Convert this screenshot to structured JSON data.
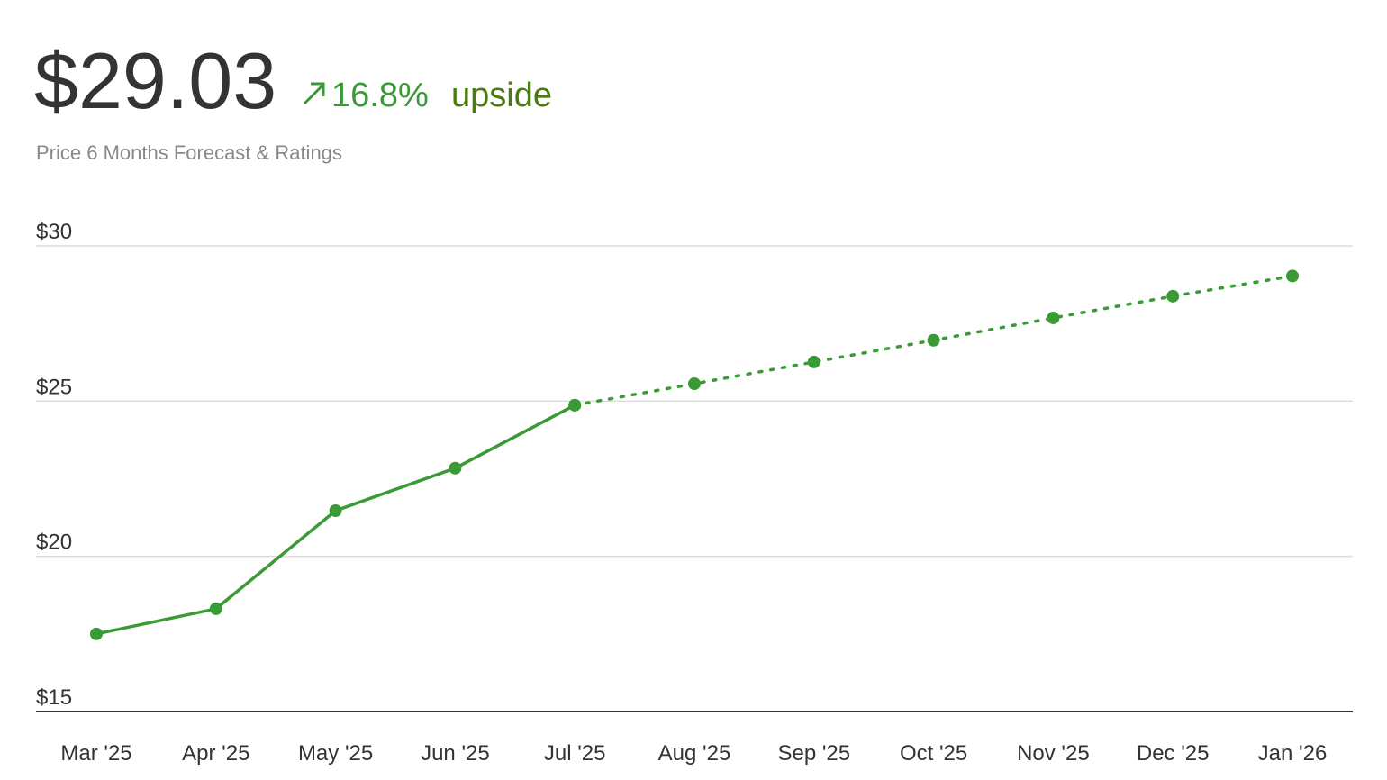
{
  "chart_data": {
    "type": "line",
    "title": "$29.03",
    "change": "16.8%",
    "change_label": "upside",
    "subtitle": "Price 6 Months Forecast & Ratings",
    "categories": [
      "Mar '25",
      "Apr '25",
      "May '25",
      "Jun '25",
      "Jul '25",
      "Aug '25",
      "Sep '25",
      "Oct '25",
      "Nov '25",
      "Dec '25",
      "Jan '26"
    ],
    "series": [
      {
        "color": "#3a9a35",
        "style": "solid",
        "values": [
          17.5,
          18.31,
          21.47,
          22.84,
          24.87,
          null,
          null,
          null,
          null,
          null,
          null
        ]
      },
      {
        "color": "#3a9a35",
        "style": "dotted",
        "values": [
          null,
          null,
          null,
          null,
          24.87,
          25.56,
          26.26,
          26.96,
          27.68,
          28.38,
          29.03
        ]
      }
    ],
    "ylim": [
      15,
      30
    ],
    "yticks": [
      {
        "value": 15,
        "label": "$15"
      },
      {
        "value": 20,
        "label": "$20"
      },
      {
        "value": 25,
        "label": "$25"
      },
      {
        "value": 30,
        "label": "$30"
      }
    ],
    "grid": true
  }
}
